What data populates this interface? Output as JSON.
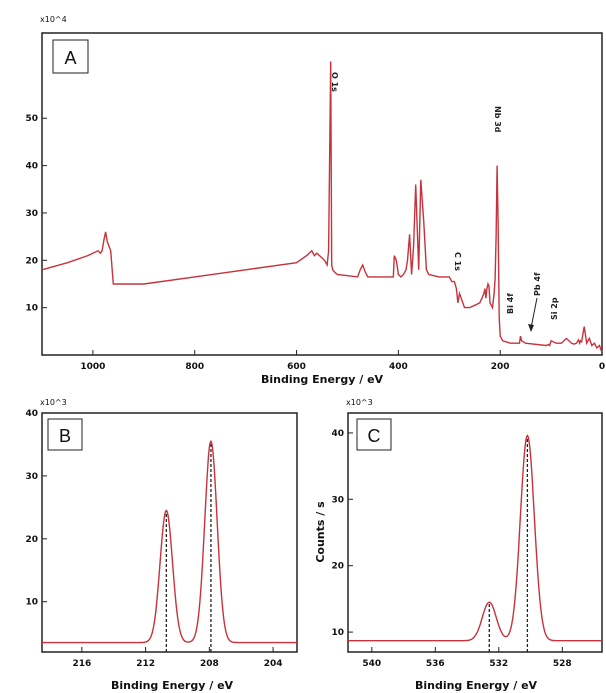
{
  "line_color": "#c8323c",
  "chart_data": [
    {
      "panel": "A",
      "type": "line",
      "xlabel": "Binding Energy / eV",
      "ylabel": "",
      "y_multiplier": "x10^4",
      "xlim": [
        1100,
        0
      ],
      "ylim": [
        0,
        68
      ],
      "x_ticks": [
        1000,
        800,
        600,
        400,
        200,
        0
      ],
      "y_ticks": [
        10,
        20,
        30,
        40,
        50
      ],
      "series": [
        {
          "x": [
            1100,
            1050,
            1010,
            1000,
            990,
            985,
            982,
            978,
            975,
            972,
            965,
            960,
            900,
            800,
            700,
            600,
            580,
            570,
            565,
            560,
            545,
            540,
            537,
            533,
            531,
            529,
            525,
            520,
            480,
            475,
            470,
            465,
            460,
            420,
            410,
            408,
            404,
            400,
            395,
            390,
            385,
            382,
            378,
            374,
            370,
            366,
            362,
            360,
            356,
            350,
            345,
            340,
            320,
            300,
            295,
            290,
            286,
            283,
            280,
            270,
            260,
            250,
            240,
            238,
            236,
            234,
            232,
            230,
            228,
            226,
            224,
            222,
            220,
            215,
            212,
            210,
            208,
            206,
            204,
            202,
            200,
            195,
            180,
            170,
            162,
            160,
            158,
            150,
            110,
            105,
            103,
            100,
            90,
            80,
            70,
            60,
            55,
            50,
            46,
            44,
            42,
            40,
            35,
            30,
            25,
            20,
            15,
            10,
            5,
            0
          ],
          "y": [
            18,
            19.5,
            21,
            21.5,
            22,
            21.5,
            22,
            24.5,
            26,
            24,
            22,
            15,
            15,
            16.5,
            18,
            19.5,
            21,
            22,
            21,
            21.5,
            20,
            19,
            22,
            62,
            19,
            18,
            17.5,
            17,
            16.5,
            18,
            19,
            17.5,
            16.5,
            16.5,
            16.5,
            21,
            20,
            17,
            16.5,
            17,
            18,
            20,
            25.5,
            17,
            23,
            36,
            24,
            18,
            37,
            28,
            18,
            17,
            16.5,
            16.5,
            15.5,
            15.5,
            14,
            11,
            13,
            10,
            10,
            10.5,
            11,
            11.5,
            12,
            12.5,
            13,
            14,
            12,
            14,
            15,
            14.5,
            11,
            10,
            13,
            16,
            25,
            40,
            28,
            8,
            4,
            3,
            2.5,
            2.5,
            2.5,
            4,
            3,
            2.5,
            2,
            2.2,
            2,
            3,
            2.5,
            2.5,
            3.5,
            2.5,
            2.3,
            2.5,
            3.2,
            2.5,
            3,
            2.8,
            6,
            2.5,
            3.5,
            2,
            2.5,
            1.5,
            2,
            0.5
          ]
        }
      ],
      "annotations": [
        "O 1s",
        "Nb 3d",
        "C 1s",
        "Bi 4f",
        "Pb 4f",
        "Si 2p"
      ]
    },
    {
      "panel": "B",
      "type": "line",
      "xlabel": "Binding Energy / eV",
      "ylabel": "",
      "y_multiplier": "x10^3",
      "xlim": [
        218.5,
        202.5
      ],
      "ylim": [
        2,
        40
      ],
      "x_ticks": [
        216,
        212,
        208,
        204
      ],
      "y_ticks": [
        10,
        20,
        30,
        40
      ],
      "peaks": [
        {
          "center": 210.7,
          "height": 24.5
        },
        {
          "center": 207.9,
          "height": 35.5
        }
      ],
      "baseline": 3.5,
      "dashed_markers": [
        210.7,
        207.9
      ]
    },
    {
      "panel": "C",
      "type": "line",
      "xlabel": "Binding Energy / eV",
      "ylabel": "Counts / s",
      "y_multiplier": "x10^3",
      "xlim": [
        541.5,
        525.5
      ],
      "ylim": [
        7,
        43
      ],
      "x_ticks": [
        540,
        536,
        532,
        528
      ],
      "y_ticks": [
        10,
        20,
        30,
        40
      ],
      "peaks": [
        {
          "center": 530.2,
          "height": 39.6
        },
        {
          "center": 532.6,
          "height": 14.5
        }
      ],
      "baseline": 8.7,
      "dashed_markers": [
        532.6,
        530.2
      ]
    }
  ]
}
